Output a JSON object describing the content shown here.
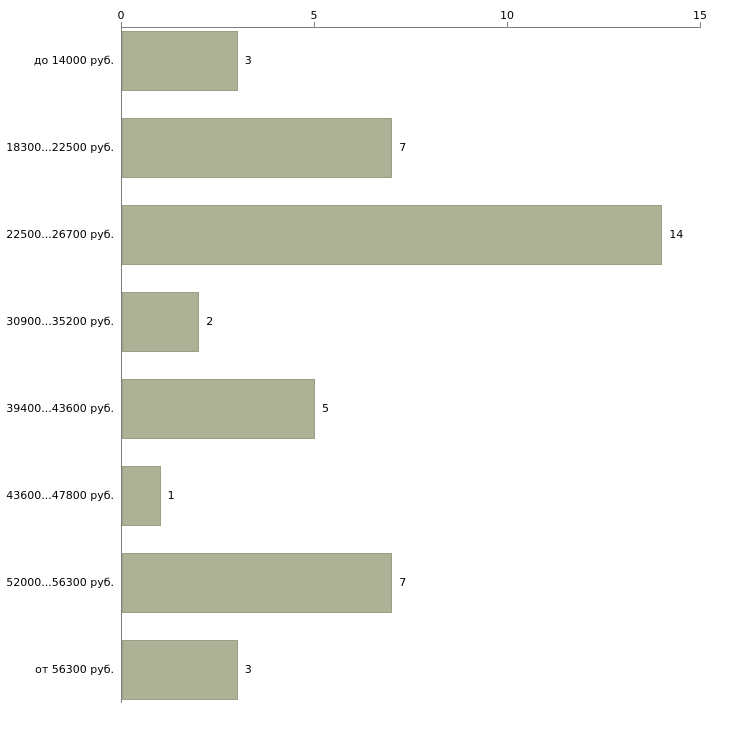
{
  "chart_data": {
    "type": "bar",
    "orientation": "horizontal",
    "title": "",
    "xlabel": "",
    "ylabel": "",
    "categories": [
      "до 14000 руб.",
      "18300...22500 руб.",
      "22500...26700 руб.",
      "30900...35200 руб.",
      "39400...43600 руб.",
      "43600...47800 руб.",
      "52000...56300 руб.",
      "от 56300 руб."
    ],
    "values": [
      3,
      7,
      14,
      2,
      5,
      1,
      7,
      3
    ],
    "xlim": [
      0,
      15
    ],
    "x_ticks": [
      0,
      5,
      10,
      15
    ],
    "grid": false,
    "legend": false,
    "colors": {
      "bar_fill": "#adb296",
      "bar_border": "#9aa086",
      "axis": "#7f7f7f",
      "text": "#000000",
      "background": "#ffffff"
    }
  }
}
